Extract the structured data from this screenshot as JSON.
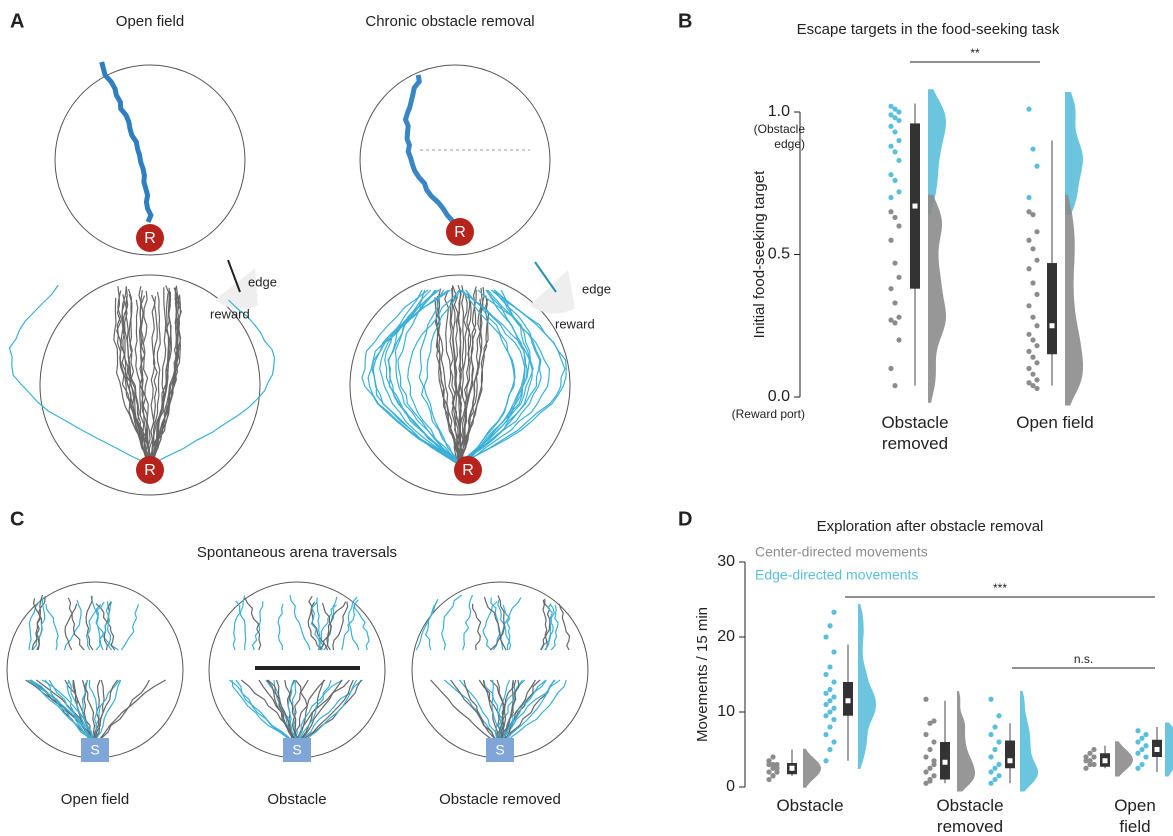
{
  "panels": {
    "A": {
      "letter": "A",
      "titles": [
        "Open field",
        "Chronic obstacle removal"
      ],
      "markers": [
        "R",
        "R",
        "R",
        "R"
      ],
      "edge_labels": [
        "edge",
        "edge"
      ],
      "reward_labels": [
        "reward",
        "reward"
      ]
    },
    "C": {
      "letter": "C",
      "title": "Spontaneous arena traversals",
      "markers": [
        "S",
        "S",
        "S"
      ],
      "captions": [
        "Open field",
        "Obstacle",
        "Obstacle removed"
      ]
    },
    "B": {
      "letter": "B"
    },
    "D": {
      "letter": "D"
    }
  },
  "chart_data": [
    {
      "type": "raincloud",
      "title": "Escape targets in the food-seeking task",
      "y_label": "Initial food-seeking target",
      "categories": [
        "Obstacle removed",
        "Open field"
      ],
      "ylim": [
        0,
        1
      ],
      "yticks": [
        {
          "value": 0,
          "label": "0.0"
        },
        0.5,
        {
          "value": 1,
          "label": "1.0"
        }
      ],
      "tick_annotations": [
        "(Reward port)",
        "(Obstacle edge)"
      ],
      "series": [
        {
          "color": "#5bbfdc",
          "values": [
            [
              1.02,
              1.01,
              1.0,
              0.99,
              0.98,
              0.97,
              0.95,
              0.93,
              0.9,
              0.88,
              0.86,
              0.83,
              0.78,
              0.76,
              0.72,
              0.7
            ],
            [
              1.01,
              0.87,
              0.81,
              0.7
            ]
          ]
        },
        {
          "color": "#8c8c8c",
          "values": [
            [
              0.65,
              0.63,
              0.6,
              0.55,
              0.47,
              0.42,
              0.38,
              0.33,
              0.28,
              0.27,
              0.26,
              0.2,
              0.1,
              0.04
            ],
            [
              0.65,
              0.64,
              0.58,
              0.55,
              0.52,
              0.48,
              0.45,
              0.4,
              0.36,
              0.32,
              0.28,
              0.25,
              0.22,
              0.2,
              0.18,
              0.16,
              0.14,
              0.12,
              0.1,
              0.08,
              0.06,
              0.05,
              0.04,
              0.03
            ]
          ]
        }
      ],
      "boxes": [
        {
          "whiskers": [
            0.04,
            1.03
          ],
          "q1": 0.38,
          "median": 0.67,
          "q3": 0.96
        },
        {
          "whiskers": [
            0.04,
            0.9
          ],
          "q1": 0.15,
          "median": 0.25,
          "q3": 0.47
        }
      ],
      "annotations": [
        "**"
      ]
    },
    {
      "type": "raincloud",
      "title": "Exploration after obstacle removal",
      "y_label": "Movements / 15 min",
      "categories": [
        "Obstacle",
        "Obstacle removed",
        "Open field"
      ],
      "ylim": [
        0,
        30
      ],
      "yticks": [
        0,
        10,
        20,
        30
      ],
      "series": [
        {
          "name": "Center-directed movements",
          "color": "#8c8c8c",
          "values": [
            [
              1,
              1.5,
              2,
              2,
              2.5,
              2.5,
              3,
              3,
              3,
              3.5,
              4,
              2,
              3,
              1.5,
              2.5
            ],
            [
              0.5,
              1,
              1.5,
              2,
              2.5,
              3,
              4,
              5,
              6,
              7,
              8.5,
              8.8,
              11.7,
              0.8,
              3.5
            ],
            [
              2.5,
              3,
              3,
              3.5,
              3.5,
              4,
              4,
              4.5,
              5
            ]
          ],
          "boxes": [
            {
              "whiskers": [
                1.5,
                5
              ],
              "q1": 1.7,
              "median": 2.5,
              "q3": 3.2
            },
            {
              "whiskers": [
                0.5,
                11.5
              ],
              "q1": 1,
              "median": 3.3,
              "q3": 6
            },
            {
              "whiskers": [
                2.5,
                5.5
              ],
              "q1": 2.7,
              "median": 3.5,
              "q3": 4.5
            }
          ]
        },
        {
          "name": "Edge-directed movements",
          "color": "#5bbfdc",
          "values": [
            [
              3.5,
              5,
              6,
              7,
              8,
              9,
              9.5,
              10,
              10.5,
              11,
              11.5,
              12,
              12.5,
              13,
              14,
              15,
              16,
              18,
              20,
              21.5,
              23.3
            ],
            [
              0.5,
              1,
              1.5,
              2,
              2.5,
              3,
              4,
              5,
              6,
              7,
              8,
              9.5,
              11.7
            ],
            [
              2.5,
              3,
              4,
              4.5,
              5,
              5.5,
              6,
              6.5,
              7,
              7.5
            ]
          ],
          "boxes": [
            {
              "whiskers": [
                3.5,
                19
              ],
              "q1": 9.5,
              "median": 11.5,
              "q3": 14
            },
            {
              "whiskers": [
                0.5,
                8.5
              ],
              "q1": 2.5,
              "median": 3.5,
              "q3": 6.2
            },
            {
              "whiskers": [
                2,
                8
              ],
              "q1": 4,
              "median": 5,
              "q3": 6.3
            }
          ]
        }
      ],
      "annotations": [
        "***",
        "n.s."
      ]
    }
  ]
}
